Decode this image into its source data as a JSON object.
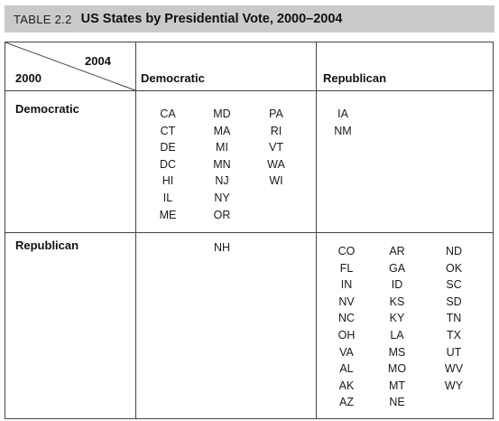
{
  "title": {
    "label": "TABLE 2.2",
    "text": "US States by Presidential Vote, 2000–2004"
  },
  "header": {
    "corner_top": "2004",
    "corner_bottom": "2000",
    "col_democratic": "Democratic",
    "col_republican": "Republican"
  },
  "rows": {
    "democratic_label": "Democratic",
    "republican_label": "Republican"
  },
  "cells": {
    "dem_dem": [
      [
        "CA",
        "CT",
        "DE",
        "DC",
        "HI",
        "IL",
        "ME"
      ],
      [
        "MD",
        "MA",
        "MI",
        "MN",
        "NJ",
        "NY",
        "OR"
      ],
      [
        "PA",
        "RI",
        "VT",
        "WA",
        "WI"
      ]
    ],
    "dem_rep": [
      [
        "IA",
        "NM"
      ]
    ],
    "rep_dem": [
      [
        "NH"
      ]
    ],
    "rep_rep": [
      [
        "CO",
        "FL",
        "IN",
        "NV",
        "NC",
        "OH",
        "VA",
        "AL",
        "AK",
        "AZ"
      ],
      [
        "AR",
        "GA",
        "ID",
        "KS",
        "KY",
        "LA",
        "MS",
        "MO",
        "MT",
        "NE"
      ],
      [
        "ND",
        "OK",
        "SC",
        "SD",
        "TN",
        "TX",
        "UT",
        "WV",
        "WY"
      ]
    ]
  }
}
